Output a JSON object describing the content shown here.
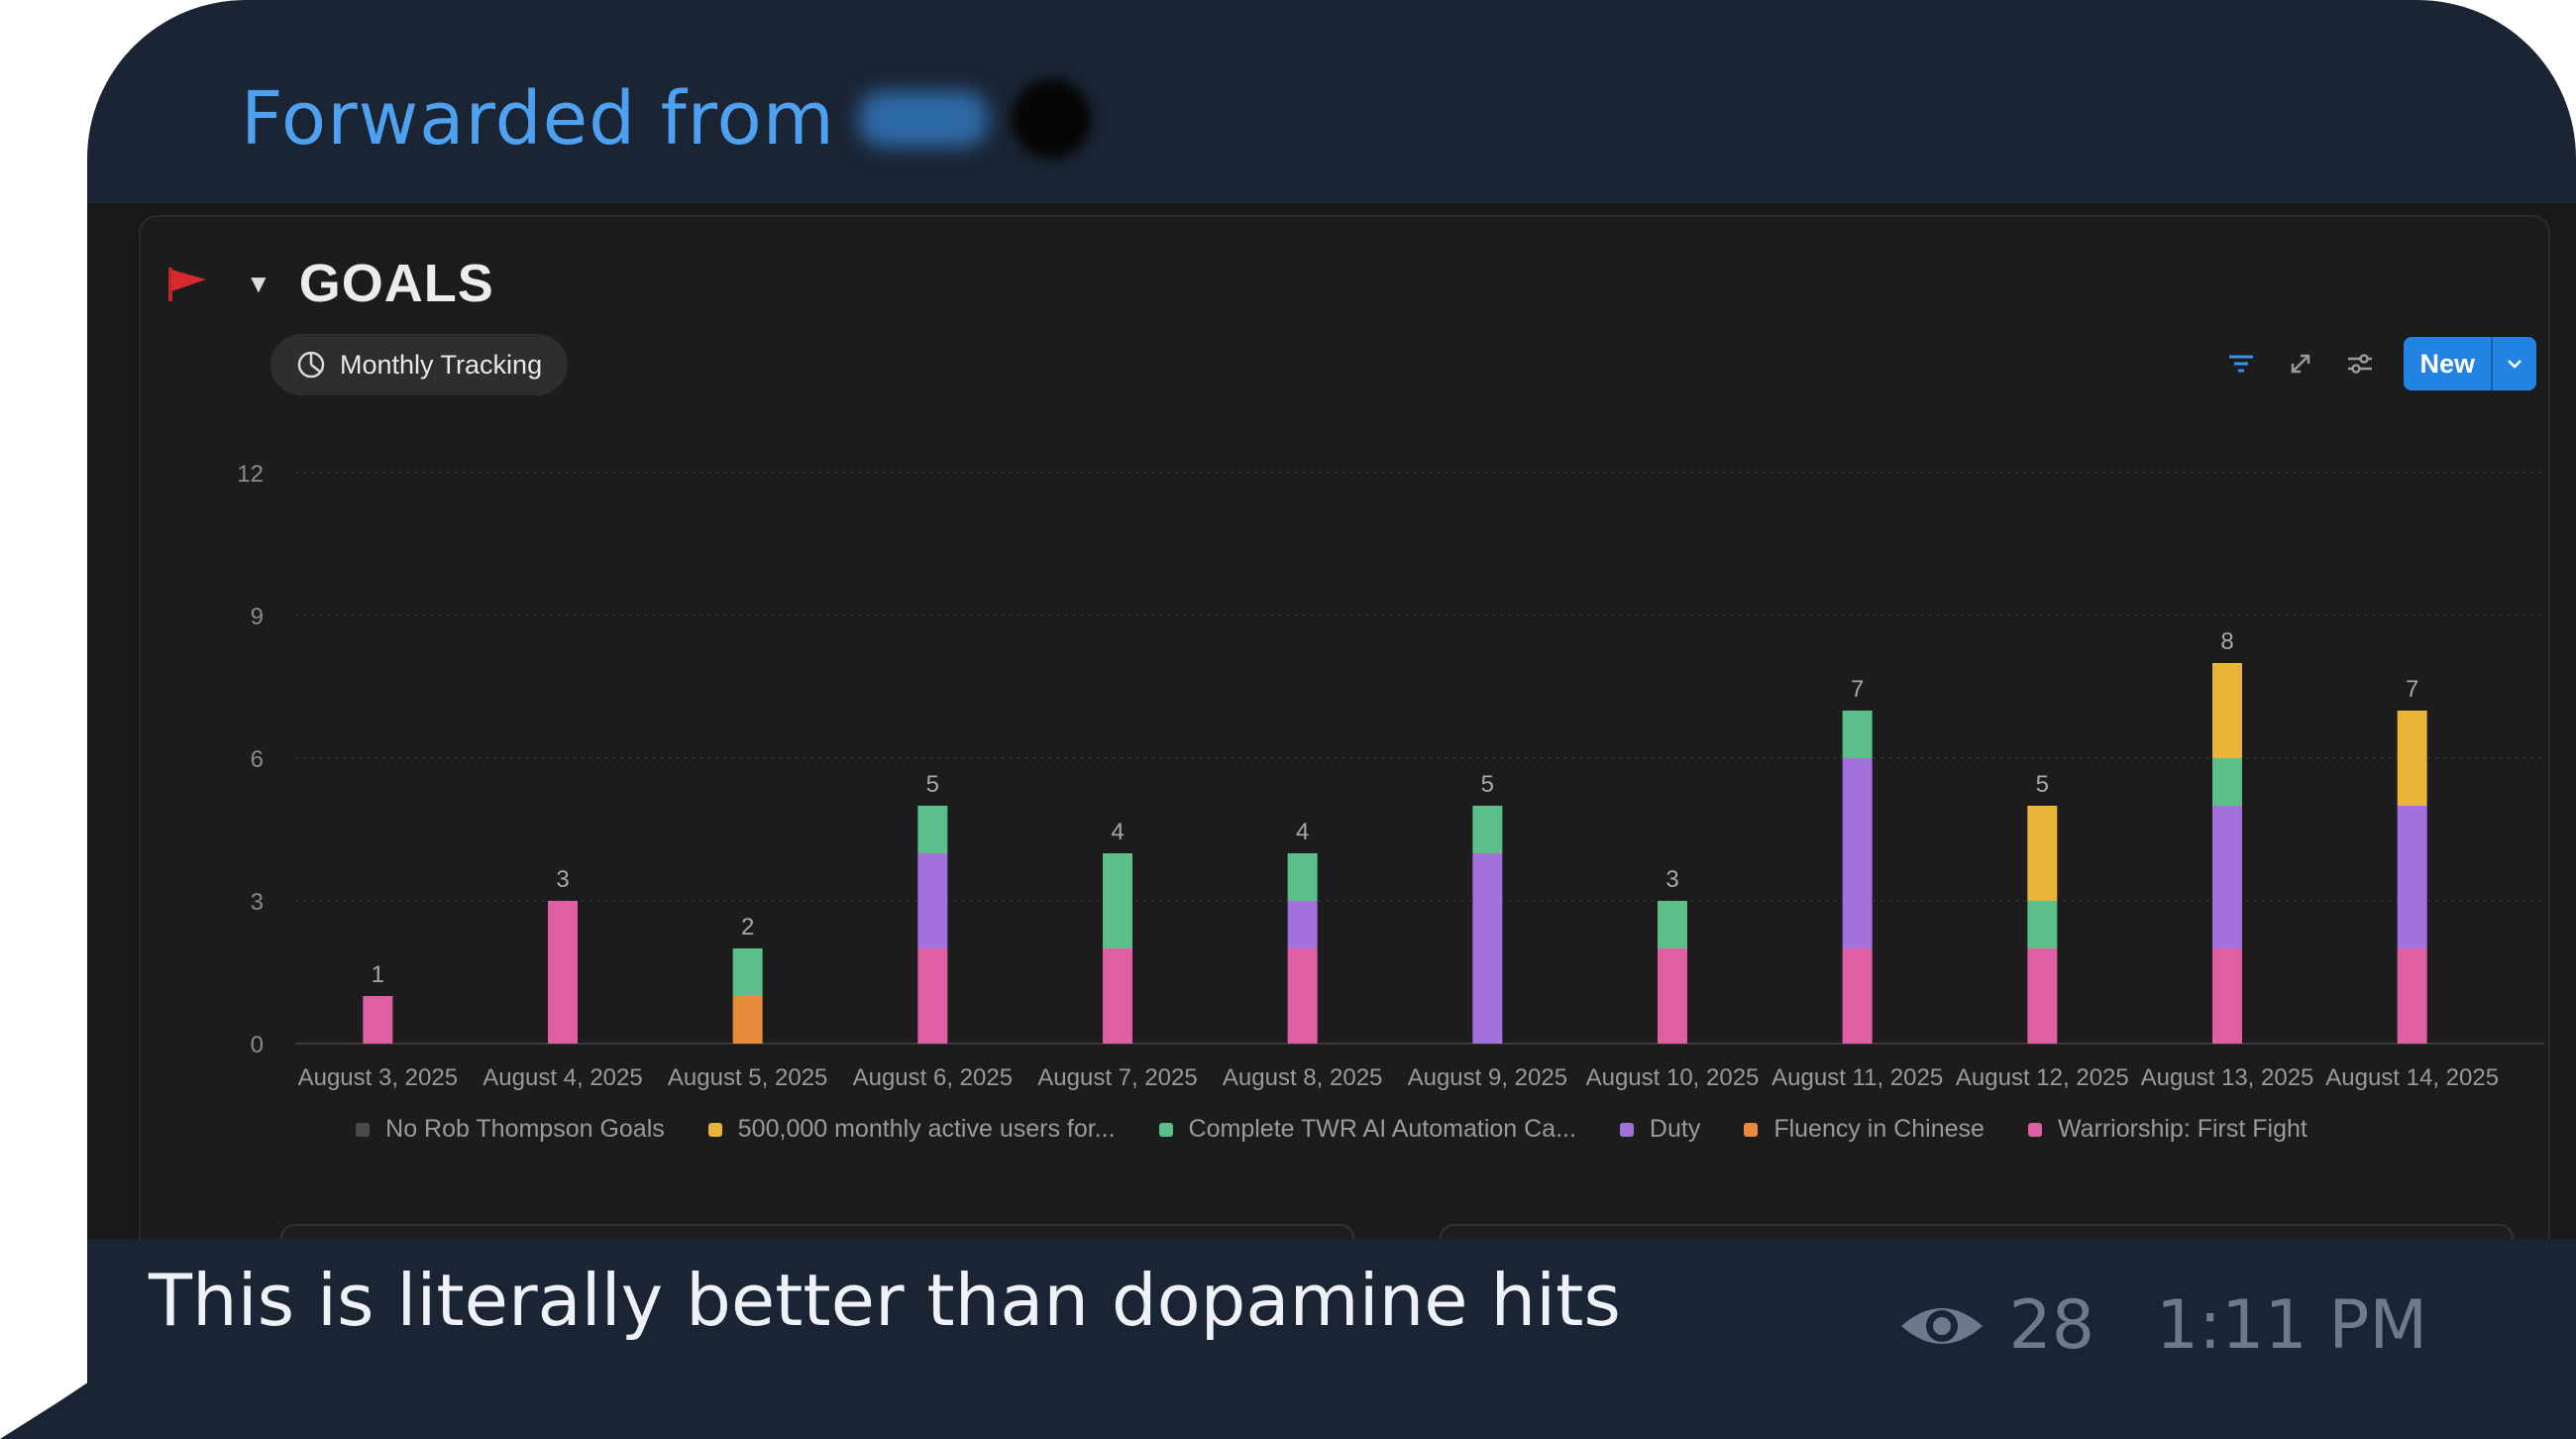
{
  "message": {
    "forwarded_label": "Forwarded from",
    "caption": "This is literally better than dopamine hits",
    "views": "28",
    "time": "1:11 PM"
  },
  "database": {
    "title": "GOALS",
    "view_tab_label": "Monthly Tracking",
    "new_button_label": "New"
  },
  "chart_data": {
    "type": "bar",
    "stacked": true,
    "ylim": [
      0,
      12
    ],
    "yticks": [
      0,
      3,
      6,
      9,
      12
    ],
    "grid": true,
    "legend_position": "bottom",
    "categories": [
      "August 3, 2025",
      "August 4, 2025",
      "August 5, 2025",
      "August 6, 2025",
      "August 7, 2025",
      "August 8, 2025",
      "August 9, 2025",
      "August 10, 2025",
      "August 11, 2025",
      "August 12, 2025",
      "August 13, 2025",
      "August 14, 2025"
    ],
    "totals": [
      1,
      3,
      2,
      5,
      4,
      4,
      5,
      3,
      7,
      5,
      8,
      7
    ],
    "series": [
      {
        "name": "Warriorship: First Fight",
        "color": "#e05ea4",
        "values": [
          1,
          3,
          0,
          2,
          2,
          2,
          0,
          2,
          2,
          2,
          2,
          2
        ]
      },
      {
        "name": "Fluency in Chinese",
        "color": "#e88b3c",
        "values": [
          0,
          0,
          1,
          0,
          0,
          0,
          0,
          0,
          0,
          0,
          0,
          0
        ]
      },
      {
        "name": "Duty",
        "color": "#a371dc",
        "values": [
          0,
          0,
          0,
          2,
          0,
          1,
          4,
          0,
          4,
          0,
          3,
          3
        ]
      },
      {
        "name": "Complete TWR AI Automation Ca...",
        "color": "#5bbf8a",
        "values": [
          0,
          0,
          1,
          1,
          2,
          1,
          1,
          1,
          1,
          1,
          1,
          0
        ]
      },
      {
        "name": "500,000 monthly active users for...",
        "color": "#e8b43a",
        "values": [
          0,
          0,
          0,
          0,
          0,
          0,
          0,
          0,
          0,
          2,
          2,
          2
        ]
      },
      {
        "name": "No Rob Thompson Goals",
        "color": "#4a4a4a",
        "values": [
          0,
          0,
          0,
          0,
          0,
          0,
          0,
          0,
          0,
          0,
          0,
          0
        ]
      }
    ],
    "legend_order": [
      "No Rob Thompson Goals",
      "500,000 monthly active users for...",
      "Complete TWR AI Automation Ca...",
      "Duty",
      "Fluency in Chinese",
      "Warriorship: First Fight"
    ]
  }
}
